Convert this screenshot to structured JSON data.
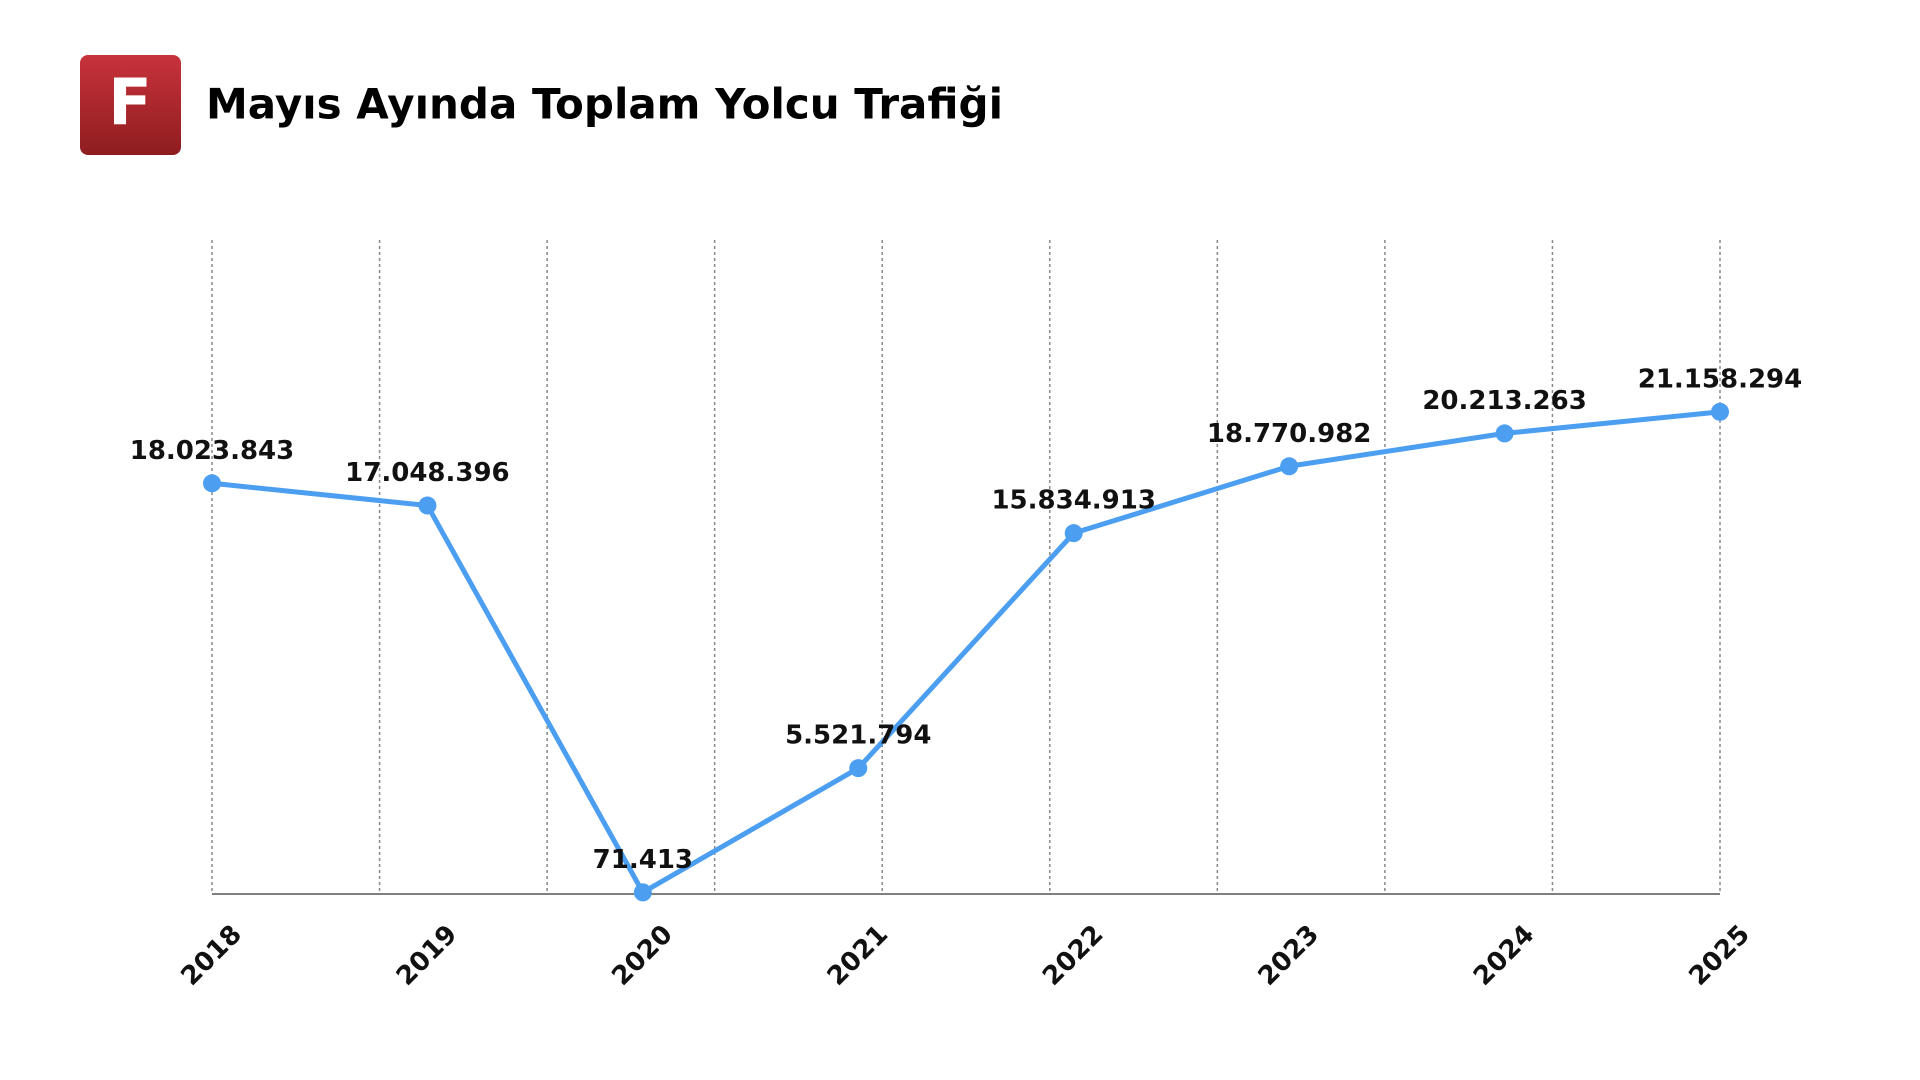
{
  "logo": "F",
  "chart_data": {
    "type": "line",
    "title": "Mayıs Ayında Toplam Yolcu Trafiği",
    "categories": [
      "2018",
      "2019",
      "2020",
      "2021",
      "2022",
      "2023",
      "2024",
      "2025"
    ],
    "series": [
      {
        "color": "#4c9ef0",
        "values": [
          18023843,
          17048396,
          71413,
          5521794,
          15834913,
          18770982,
          20213263,
          21158294
        ],
        "value_labels": [
          "18.023.843",
          "17.048.396",
          "71.413",
          "5.521.794",
          "15.834.913",
          "18.770.982",
          "20.213.263",
          "21.158.294"
        ]
      }
    ],
    "ylim": [
      0,
      28700000
    ]
  }
}
